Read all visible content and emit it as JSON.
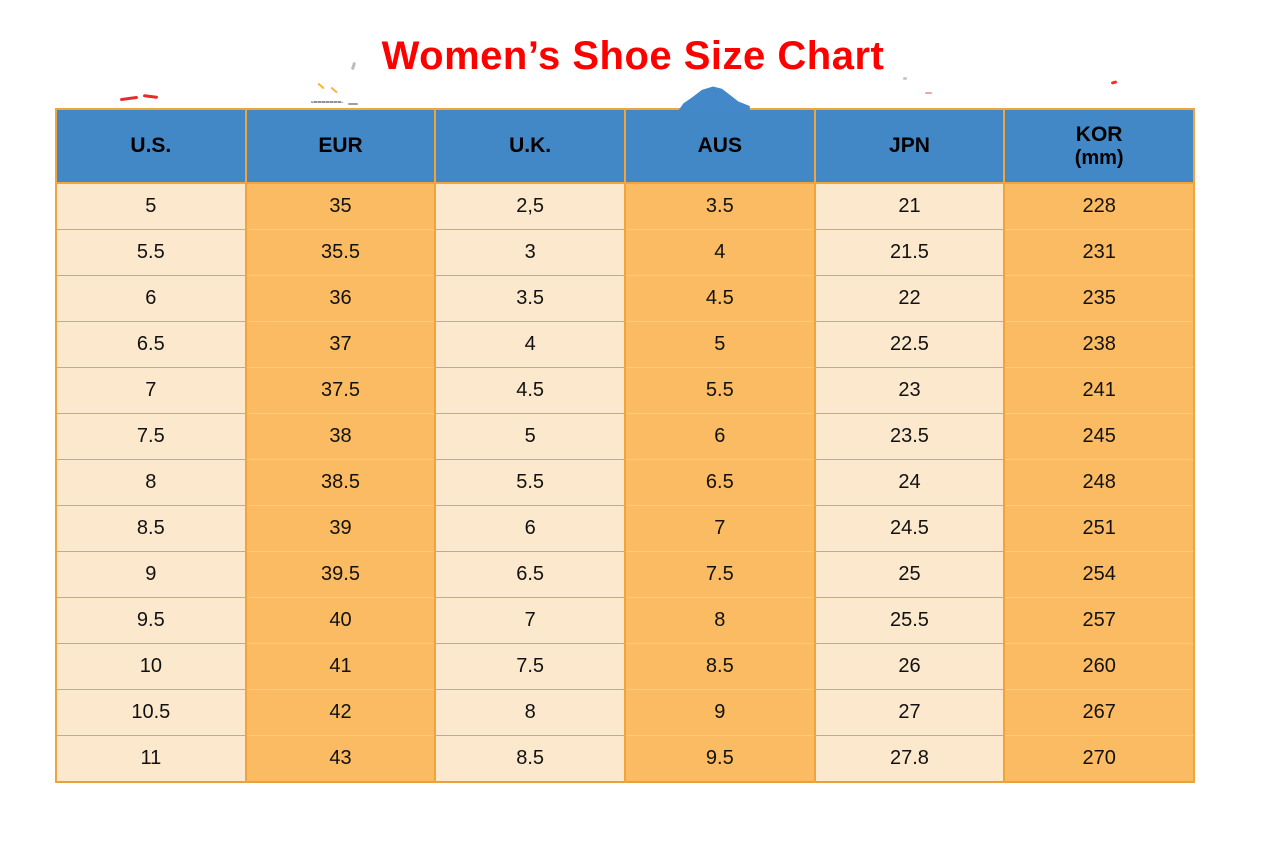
{
  "chart_data": {
    "type": "table",
    "title": "Women’s Shoe Size Chart",
    "columns": [
      {
        "label": "U.S."
      },
      {
        "label": "EUR"
      },
      {
        "label": "U.K."
      },
      {
        "label": "AUS"
      },
      {
        "label": "JPN"
      },
      {
        "label": "KOR",
        "sublabel": "(mm)"
      }
    ],
    "rows": [
      [
        "5",
        "35",
        "2,5",
        "3.5",
        "21",
        "228"
      ],
      [
        "5.5",
        "35.5",
        "3",
        "4",
        "21.5",
        "231"
      ],
      [
        "6",
        "36",
        "3.5",
        "4.5",
        "22",
        "235"
      ],
      [
        "6.5",
        "37",
        "4",
        "5",
        "22.5",
        "238"
      ],
      [
        "7",
        "37.5",
        "4.5",
        "5.5",
        "23",
        "241"
      ],
      [
        "7.5",
        "38",
        "5",
        "6",
        "23.5",
        "245"
      ],
      [
        "8",
        "38.5",
        "5.5",
        "6.5",
        "24",
        "248"
      ],
      [
        "8.5",
        "39",
        "6",
        "7",
        "24.5",
        "251"
      ],
      [
        "9",
        "39.5",
        "6.5",
        "7.5",
        "25",
        "254"
      ],
      [
        "9.5",
        "40",
        "7",
        "8",
        "25.5",
        "257"
      ],
      [
        "10",
        "41",
        "7.5",
        "8.5",
        "26",
        "260"
      ],
      [
        "10.5",
        "42",
        "8",
        "9",
        "27",
        "267"
      ],
      [
        "11",
        "43",
        "8.5",
        "9.5",
        "27.8",
        "270"
      ]
    ],
    "layout": {
      "grid": true,
      "column_fill_alternates": true
    }
  },
  "colors": {
    "title": "#FF0000",
    "header_bg": "#4288C7",
    "header_text": "#000000",
    "column_light": "#FCE9CD",
    "column_orange": "#FABB62",
    "grid_border": "#F2A43C",
    "grid_border_light": "#FFCB79",
    "outer_border": "#E8A23B",
    "blob_blue": "#4388C8"
  }
}
